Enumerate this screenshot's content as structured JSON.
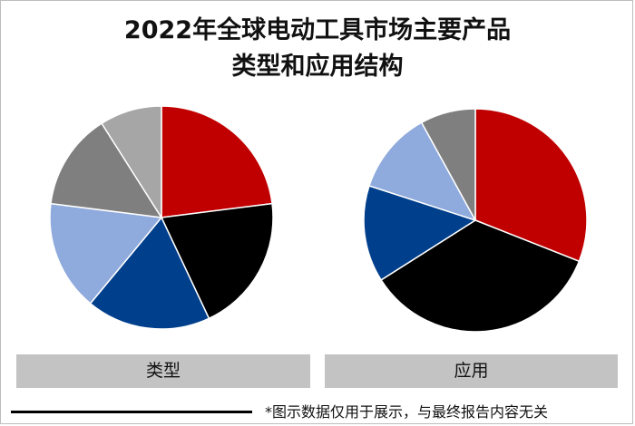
{
  "title_line1": "2022年全球电动工具市场主要产品",
  "title_line2": "类型和应用结构",
  "footnote": "*图示数据仅用于展示，与最终报告内容无关",
  "chart_data": [
    {
      "type": "pie",
      "label": "类型",
      "values": [
        23,
        20,
        18,
        16,
        14,
        9
      ],
      "colors": [
        "#c00000",
        "#000000",
        "#003f8c",
        "#8faadc",
        "#7f7f7f",
        "#a6a6a6"
      ]
    },
    {
      "type": "pie",
      "label": "应用",
      "values": [
        31,
        35,
        14,
        12,
        8
      ],
      "colors": [
        "#c00000",
        "#000000",
        "#003f8c",
        "#8faadc",
        "#7f7f7f"
      ]
    }
  ]
}
